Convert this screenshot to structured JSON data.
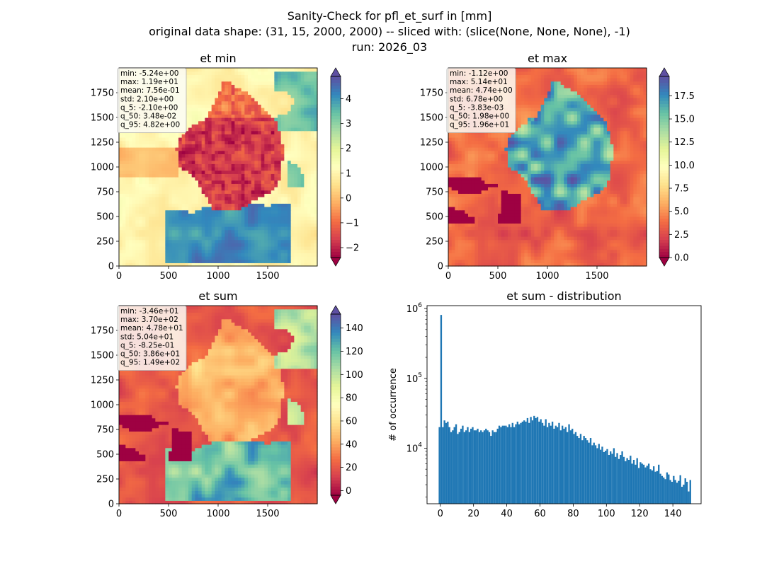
{
  "figure": {
    "title_lines": [
      "Sanity-Check for pfl_et_surf in [mm]",
      "original data shape: (31, 15, 2000, 2000) -- sliced with: (slice(None, None, None), -1)",
      "run: 2026_03"
    ]
  },
  "chart_data": [
    {
      "type": "heatmap",
      "title": "et min",
      "colormap": "Spectral",
      "extend": "both",
      "xlim": [
        0,
        2000
      ],
      "ylim": [
        0,
        2000
      ],
      "xticks": [
        "0",
        "500",
        "1000",
        "1500"
      ],
      "yticks": [
        "0",
        "250",
        "500",
        "750",
        "1000",
        "1250",
        "1500",
        "1750"
      ],
      "color_range": [
        -2.4,
        4.9
      ],
      "colorbar_ticks": [
        "−2",
        "−1",
        "0",
        "1",
        "2",
        "3",
        "4"
      ],
      "colorbar_values": [
        -2,
        -1,
        0,
        1,
        2,
        3,
        4
      ],
      "stats": [
        "min: -5.24e+00",
        "max: 1.19e+01",
        "mean: 7.56e-01",
        "std: 2.10e+00",
        "q_5: -2.10e+00",
        "q_50: 3.48e-02",
        "q_95: 4.82e+00"
      ]
    },
    {
      "type": "heatmap",
      "title": "et max",
      "colormap": "Spectral",
      "extend": "both",
      "xlim": [
        0,
        2000
      ],
      "ylim": [
        0,
        2000
      ],
      "xticks": [
        "0",
        "500",
        "1000",
        "1500"
      ],
      "yticks": [
        "0",
        "250",
        "500",
        "750",
        "1000",
        "1250",
        "1500",
        "1750"
      ],
      "color_range": [
        0,
        19.6
      ],
      "colorbar_ticks": [
        "0.0",
        "2.5",
        "5.0",
        "7.5",
        "10.0",
        "12.5",
        "15.0",
        "17.5"
      ],
      "colorbar_values": [
        0,
        2.5,
        5,
        7.5,
        10,
        12.5,
        15,
        17.5
      ],
      "stats": [
        "min: -1.12e+00",
        "max: 5.14e+01",
        "mean: 4.74e+00",
        "std: 6.78e+00",
        "q_5: -3.83e-03",
        "q_50: 1.98e+00",
        "q_95: 1.96e+01"
      ]
    },
    {
      "type": "heatmap",
      "title": "et sum",
      "colormap": "Spectral",
      "extend": "both",
      "xlim": [
        0,
        2000
      ],
      "ylim": [
        0,
        2000
      ],
      "xticks": [
        "0",
        "500",
        "1000",
        "1500"
      ],
      "yticks": [
        "0",
        "250",
        "500",
        "750",
        "1000",
        "1250",
        "1500",
        "1750"
      ],
      "color_range": [
        -4,
        152
      ],
      "colorbar_ticks": [
        "0",
        "20",
        "40",
        "60",
        "80",
        "100",
        "120",
        "140"
      ],
      "colorbar_values": [
        0,
        20,
        40,
        60,
        80,
        100,
        120,
        140
      ],
      "stats": [
        "min: -3.46e+01",
        "max: 3.70e+02",
        "mean: 4.78e+01",
        "std: 5.04e+01",
        "q_5: -8.25e-01",
        "q_50: 3.86e+01",
        "q_95: 1.49e+02"
      ]
    },
    {
      "type": "bar",
      "title": "et sum - distribution",
      "ylabel": "# of occurrence",
      "xlabel": "",
      "yscale": "log",
      "xlim": [
        -8,
        157
      ],
      "ylim": [
        1600,
        1100000
      ],
      "xticks": [
        "0",
        "20",
        "40",
        "60",
        "80",
        "100",
        "120",
        "140"
      ],
      "xtick_values": [
        0,
        20,
        40,
        60,
        80,
        100,
        120,
        140
      ],
      "yticks": [
        "10^4",
        "10^5",
        "10^6"
      ],
      "ytick_values": [
        10000,
        100000,
        1000000
      ],
      "color": "#1f77b4",
      "bin_start": -1,
      "bin_width": 1,
      "values": [
        20000,
        810000,
        20000,
        25000,
        23000,
        24000,
        20000,
        17000,
        18000,
        20000,
        22000,
        16000,
        17000,
        19000,
        21000,
        17000,
        18000,
        20000,
        17000,
        19000,
        20000,
        18000,
        18000,
        19000,
        17000,
        18000,
        17000,
        18000,
        19000,
        18000,
        17000,
        15000,
        18000,
        17000,
        17000,
        19000,
        21000,
        20000,
        21000,
        21000,
        21000,
        20000,
        22000,
        20000,
        23000,
        20000,
        22000,
        24000,
        22000,
        23000,
        24000,
        25000,
        24000,
        27000,
        23000,
        28000,
        25000,
        29000,
        27000,
        28000,
        24000,
        26000,
        23000,
        21000,
        26000,
        20000,
        23000,
        21000,
        24000,
        19000,
        21000,
        20000,
        23000,
        18000,
        21000,
        19000,
        20000,
        17000,
        22000,
        18000,
        19000,
        16000,
        17000,
        15000,
        14000,
        16000,
        13000,
        15000,
        14000,
        13000,
        12000,
        14000,
        11000,
        12000,
        11000,
        10000,
        11500,
        9500,
        10500,
        8800,
        9200,
        9700,
        8000,
        9000,
        8300,
        10000,
        7500,
        8500,
        7000,
        8000,
        9000,
        7500,
        6500,
        7200,
        6800,
        7800,
        6000,
        6800,
        5800,
        7200,
        5200,
        6300,
        6000,
        5800,
        5300,
        5600,
        6000,
        5000,
        4800,
        5500,
        4600,
        4700,
        5800,
        4300,
        4000,
        3800,
        3600,
        4500,
        4200,
        3500,
        3300,
        4000,
        3500,
        3200,
        3400,
        4100,
        2800,
        3000,
        3700,
        3300,
        2400,
        3500
      ]
    }
  ]
}
